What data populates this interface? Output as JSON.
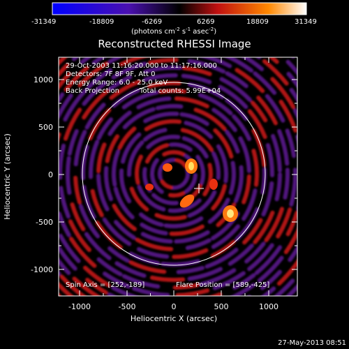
{
  "colorbar": {
    "ticks": [
      "-31349",
      "-18809",
      "-6269",
      "6269",
      "18809",
      "31349"
    ],
    "unit_prefix": "(photons cm",
    "unit_exp1": "-2",
    "unit_mid": " s",
    "unit_exp2": "-1",
    "unit_mid2": " asec",
    "unit_exp3": "-2",
    "unit_suffix": ")"
  },
  "title": "Reconstructed RHESSI Image",
  "info": {
    "line1": "29-Oct-2003 11:16:20.000 to 11:17:16.000",
    "line2": "Detectors: 7F 8F 9F, Att 0",
    "line3": "Energy Range: 6.0 - 25.0 keV",
    "line4a": "Back Projection",
    "line4b": "Total counts: 5.99E+04"
  },
  "footer_left": "Spin Axis = [252,-189]",
  "footer_right": "Flare Position = [589,-425]",
  "axes": {
    "xlabel": "Heliocentric X (arcsec)",
    "ylabel": "Heliocentric Y (arcsec)",
    "xticks": [
      "-1000",
      "-500",
      "0",
      "500",
      "1000"
    ],
    "yticks": [
      "1000",
      "500",
      "0",
      "-500",
      "-1000"
    ]
  },
  "date_stamp": "27-May-2013 08:51",
  "colors": {
    "background": "#000000",
    "purple": "#5a1a8c",
    "red": "#d01818",
    "yellow": "#ffe060"
  }
}
